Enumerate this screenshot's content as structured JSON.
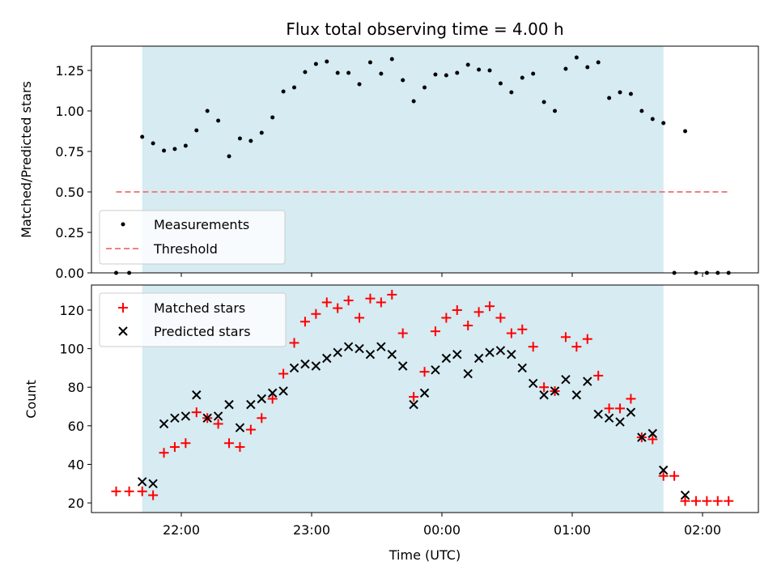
{
  "chart_data": [
    {
      "type": "scatter",
      "title": "Flux total observing time = 4.00 h",
      "xlabel": "",
      "ylabel": "Matched/Predicted stars",
      "ylim": [
        0,
        1.4
      ],
      "yticks": [
        0.0,
        0.25,
        0.5,
        0.75,
        1.0,
        1.25
      ],
      "ytick_labels": [
        "0.00",
        "0.25",
        "0.50",
        "0.75",
        "1.00",
        "1.25"
      ],
      "xticks": [
        "22:00",
        "23:00",
        "00:00",
        "01:00",
        "02:00"
      ],
      "xtick_labels": [
        "",
        "",
        "",
        "",
        ""
      ],
      "shaded_span": {
        "start": "21:42",
        "end": "01:42",
        "color": "#add8e6"
      },
      "legend": {
        "placement": "lower-left",
        "entries": [
          "Measurements",
          "Threshold"
        ]
      },
      "series": [
        {
          "name": "Measurements",
          "marker": "dot",
          "color": "#000000",
          "points": [
            [
              "21:30",
              0.0
            ],
            [
              "21:36",
              0.0
            ],
            [
              "21:42",
              0.84
            ],
            [
              "21:47",
              0.8
            ],
            [
              "21:52",
              0.755
            ],
            [
              "21:57",
              0.765
            ],
            [
              "22:02",
              0.785
            ],
            [
              "22:07",
              0.88
            ],
            [
              "22:12",
              1.0
            ],
            [
              "22:17",
              0.94
            ],
            [
              "22:22",
              0.72
            ],
            [
              "22:27",
              0.83
            ],
            [
              "22:32",
              0.815
            ],
            [
              "22:37",
              0.865
            ],
            [
              "22:42",
              0.96
            ],
            [
              "22:47",
              1.12
            ],
            [
              "22:52",
              1.145
            ],
            [
              "22:57",
              1.24
            ],
            [
              "23:02",
              1.29
            ],
            [
              "23:07",
              1.305
            ],
            [
              "23:12",
              1.235
            ],
            [
              "23:17",
              1.235
            ],
            [
              "23:22",
              1.165
            ],
            [
              "23:27",
              1.3
            ],
            [
              "23:32",
              1.23
            ],
            [
              "23:37",
              1.32
            ],
            [
              "23:42",
              1.19
            ],
            [
              "23:47",
              1.06
            ],
            [
              "23:52",
              1.145
            ],
            [
              "23:57",
              1.225
            ],
            [
              "00:02",
              1.22
            ],
            [
              "00:07",
              1.235
            ],
            [
              "00:12",
              1.285
            ],
            [
              "00:17",
              1.255
            ],
            [
              "00:22",
              1.25
            ],
            [
              "00:27",
              1.17
            ],
            [
              "00:32",
              1.115
            ],
            [
              "00:37",
              1.205
            ],
            [
              "00:42",
              1.23
            ],
            [
              "00:47",
              1.055
            ],
            [
              "00:52",
              1.0
            ],
            [
              "00:57",
              1.26
            ],
            [
              "01:02",
              1.33
            ],
            [
              "01:07",
              1.27
            ],
            [
              "01:12",
              1.3
            ],
            [
              "01:17",
              1.08
            ],
            [
              "01:22",
              1.115
            ],
            [
              "01:27",
              1.105
            ],
            [
              "01:32",
              1.0
            ],
            [
              "01:37",
              0.95
            ],
            [
              "01:42",
              0.925
            ],
            [
              "01:47",
              0.0
            ],
            [
              "01:52",
              0.875
            ],
            [
              "01:57",
              0.0
            ],
            [
              "02:02",
              0.0
            ],
            [
              "02:07",
              0.0
            ],
            [
              "02:12",
              0.0
            ]
          ]
        },
        {
          "name": "Threshold",
          "marker": "dashed-line",
          "color": "#f08080",
          "points": [
            [
              "21:30",
              0.5
            ],
            [
              "02:12",
              0.5
            ]
          ]
        }
      ]
    },
    {
      "type": "scatter",
      "title": "",
      "xlabel": "Time (UTC)",
      "ylabel": "Count",
      "ylim": [
        15,
        133
      ],
      "yticks": [
        20,
        40,
        60,
        80,
        100,
        120
      ],
      "ytick_labels": [
        "20",
        "40",
        "60",
        "80",
        "100",
        "120"
      ],
      "xticks": [
        "22:00",
        "23:00",
        "00:00",
        "01:00",
        "02:00"
      ],
      "xtick_labels": [
        "22:00",
        "23:00",
        "00:00",
        "01:00",
        "02:00"
      ],
      "shaded_span": {
        "start": "21:42",
        "end": "01:42",
        "color": "#add8e6"
      },
      "legend": {
        "placement": "upper-left",
        "entries": [
          "Matched stars",
          "Predicted stars"
        ]
      },
      "series": [
        {
          "name": "Matched stars",
          "marker": "plus",
          "color": "#ff0000",
          "points": [
            [
              "21:30",
              26
            ],
            [
              "21:36",
              26
            ],
            [
              "21:42",
              26
            ],
            [
              "21:47",
              24
            ],
            [
              "21:52",
              46
            ],
            [
              "21:57",
              49
            ],
            [
              "22:02",
              51
            ],
            [
              "22:07",
              67
            ],
            [
              "22:12",
              64
            ],
            [
              "22:17",
              61
            ],
            [
              "22:22",
              51
            ],
            [
              "22:27",
              49
            ],
            [
              "22:32",
              58
            ],
            [
              "22:37",
              64
            ],
            [
              "22:42",
              74
            ],
            [
              "22:47",
              87
            ],
            [
              "22:52",
              103
            ],
            [
              "22:57",
              114
            ],
            [
              "23:02",
              118
            ],
            [
              "23:07",
              124
            ],
            [
              "23:12",
              121
            ],
            [
              "23:17",
              125
            ],
            [
              "23:22",
              116
            ],
            [
              "23:27",
              126
            ],
            [
              "23:32",
              124
            ],
            [
              "23:37",
              128
            ],
            [
              "23:42",
              108
            ],
            [
              "23:47",
              75
            ],
            [
              "23:52",
              88
            ],
            [
              "23:57",
              109
            ],
            [
              "00:02",
              116
            ],
            [
              "00:07",
              120
            ],
            [
              "00:12",
              112
            ],
            [
              "00:17",
              119
            ],
            [
              "00:22",
              122
            ],
            [
              "00:27",
              116
            ],
            [
              "00:32",
              108
            ],
            [
              "00:37",
              110
            ],
            [
              "00:42",
              101
            ],
            [
              "00:47",
              80
            ],
            [
              "00:52",
              78
            ],
            [
              "00:57",
              106
            ],
            [
              "01:02",
              101
            ],
            [
              "01:07",
              105
            ],
            [
              "01:12",
              86
            ],
            [
              "01:17",
              69
            ],
            [
              "01:22",
              69
            ],
            [
              "01:27",
              74
            ],
            [
              "01:32",
              54
            ],
            [
              "01:37",
              53
            ],
            [
              "01:42",
              34
            ],
            [
              "01:47",
              34
            ],
            [
              "01:52",
              21
            ],
            [
              "01:57",
              21
            ],
            [
              "02:02",
              21
            ],
            [
              "02:07",
              21
            ],
            [
              "02:12",
              21
            ]
          ]
        },
        {
          "name": "Predicted stars",
          "marker": "x",
          "color": "#000000",
          "points": [
            [
              "21:42",
              31
            ],
            [
              "21:47",
              30
            ],
            [
              "21:52",
              61
            ],
            [
              "21:57",
              64
            ],
            [
              "22:02",
              65
            ],
            [
              "22:07",
              76
            ],
            [
              "22:12",
              64
            ],
            [
              "22:17",
              65
            ],
            [
              "22:22",
              71
            ],
            [
              "22:27",
              59
            ],
            [
              "22:32",
              71
            ],
            [
              "22:37",
              74
            ],
            [
              "22:42",
              77
            ],
            [
              "22:47",
              78
            ],
            [
              "22:52",
              90
            ],
            [
              "22:57",
              92
            ],
            [
              "23:02",
              91
            ],
            [
              "23:07",
              95
            ],
            [
              "23:12",
              98
            ],
            [
              "23:17",
              101
            ],
            [
              "23:22",
              100
            ],
            [
              "23:27",
              97
            ],
            [
              "23:32",
              101
            ],
            [
              "23:37",
              97
            ],
            [
              "23:42",
              91
            ],
            [
              "23:47",
              71
            ],
            [
              "23:52",
              77
            ],
            [
              "23:57",
              89
            ],
            [
              "00:02",
              95
            ],
            [
              "00:07",
              97
            ],
            [
              "00:12",
              87
            ],
            [
              "00:17",
              95
            ],
            [
              "00:22",
              98
            ],
            [
              "00:27",
              99
            ],
            [
              "00:32",
              97
            ],
            [
              "00:37",
              90
            ],
            [
              "00:42",
              82
            ],
            [
              "00:47",
              76
            ],
            [
              "00:52",
              78
            ],
            [
              "00:57",
              84
            ],
            [
              "01:02",
              76
            ],
            [
              "01:07",
              83
            ],
            [
              "01:12",
              66
            ],
            [
              "01:17",
              64
            ],
            [
              "01:22",
              62
            ],
            [
              "01:27",
              67
            ],
            [
              "01:32",
              54
            ],
            [
              "01:37",
              56
            ],
            [
              "01:42",
              37
            ],
            [
              "01:52",
              24
            ]
          ]
        }
      ]
    }
  ]
}
